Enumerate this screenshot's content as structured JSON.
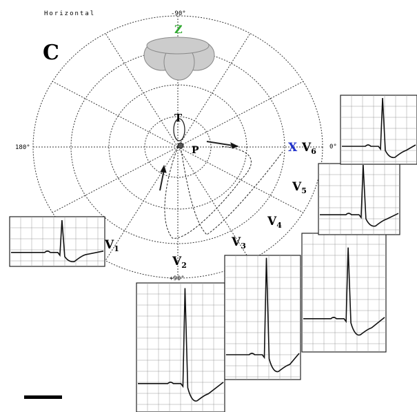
{
  "header": {
    "title": "Horizontal",
    "panel": "C"
  },
  "axes": {
    "top": "-90°",
    "left": "180°",
    "right": "0°",
    "bottom": "+90°",
    "z": "Z",
    "x": "X"
  },
  "loops": {
    "t": "T",
    "p": "P"
  },
  "leads": [
    {
      "letter": "V",
      "sub": "1"
    },
    {
      "letter": "V",
      "sub": "2"
    },
    {
      "letter": "V",
      "sub": "3"
    },
    {
      "letter": "V",
      "sub": "4"
    },
    {
      "letter": "V",
      "sub": "5"
    },
    {
      "letter": "V",
      "sub": "6"
    }
  ]
}
